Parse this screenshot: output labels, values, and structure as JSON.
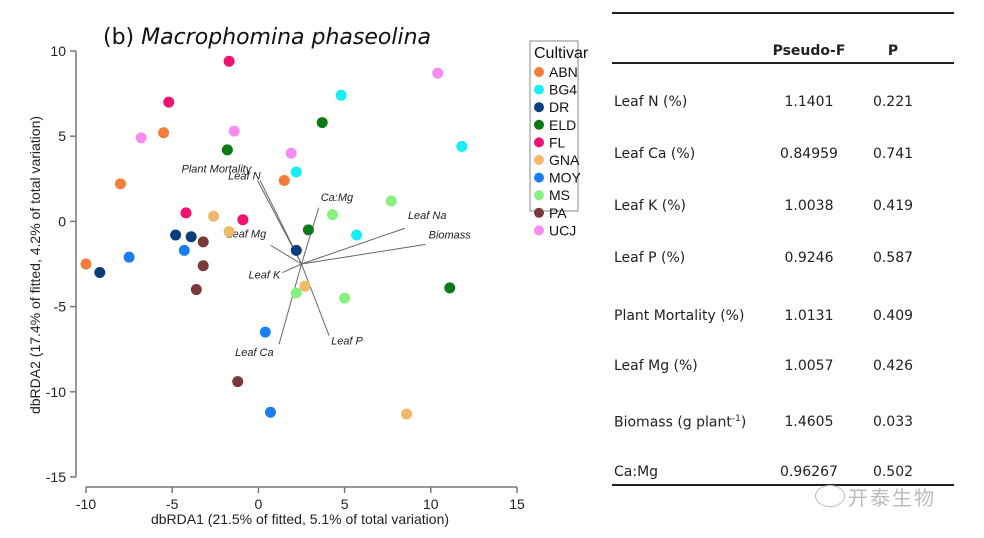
{
  "chart_data": {
    "type": "scatter",
    "title_prefix": "(b) ",
    "title_species": "Macrophomina phaseolina",
    "xlabel": "dbRDA1 (21.5% of fitted, 5.1% of total variation)",
    "ylabel": "dbRDA2 (17.4% of fitted, 4.2% of total variation)",
    "xlim": [
      -10,
      15
    ],
    "ylim": [
      -15,
      10
    ],
    "xticks": [
      -10,
      -5,
      0,
      5,
      10,
      15
    ],
    "yticks": [
      10,
      5,
      0,
      -5,
      -10,
      -15
    ],
    "grid": false,
    "legend": {
      "title": "Cultivar",
      "placement": "right",
      "entries": [
        {
          "name": "ABN",
          "color": "#f47c3c"
        },
        {
          "name": "BG4",
          "color": "#16f0f4"
        },
        {
          "name": "DR",
          "color": "#0b3d7a"
        },
        {
          "name": "ELD",
          "color": "#0a7a14"
        },
        {
          "name": "FL",
          "color": "#f0126f"
        },
        {
          "name": "GNA",
          "color": "#f2b86a"
        },
        {
          "name": "MOY",
          "color": "#1a7ef2"
        },
        {
          "name": "MS",
          "color": "#86f080"
        },
        {
          "name": "PA",
          "color": "#7a3a3a"
        },
        {
          "name": "UCJ",
          "color": "#f88cf2"
        }
      ]
    },
    "points": [
      {
        "group": "FL",
        "x": -1.7,
        "y": 9.4
      },
      {
        "group": "FL",
        "x": -5.2,
        "y": 7.0
      },
      {
        "group": "UCJ",
        "x": -6.8,
        "y": 4.9
      },
      {
        "group": "ABN",
        "x": -5.5,
        "y": 5.2
      },
      {
        "group": "UCJ",
        "x": -1.4,
        "y": 5.3
      },
      {
        "group": "ELD",
        "x": -1.8,
        "y": 4.2
      },
      {
        "group": "ABN",
        "x": -8.0,
        "y": 2.2
      },
      {
        "group": "UCJ",
        "x": 10.4,
        "y": 8.7
      },
      {
        "group": "BG4",
        "x": 4.8,
        "y": 7.4
      },
      {
        "group": "ELD",
        "x": 3.7,
        "y": 5.8
      },
      {
        "group": "UCJ",
        "x": 1.9,
        "y": 4.0
      },
      {
        "group": "BG4",
        "x": 2.2,
        "y": 2.9
      },
      {
        "group": "ABN",
        "x": 1.5,
        "y": 2.4
      },
      {
        "group": "BG4",
        "x": 11.8,
        "y": 4.4
      },
      {
        "group": "FL",
        "x": -4.2,
        "y": 0.5
      },
      {
        "group": "GNA",
        "x": -2.6,
        "y": 0.3
      },
      {
        "group": "FL",
        "x": -0.9,
        "y": 0.1
      },
      {
        "group": "GNA",
        "x": -1.7,
        "y": -0.6
      },
      {
        "group": "DR",
        "x": -4.8,
        "y": -0.8
      },
      {
        "group": "DR",
        "x": -3.9,
        "y": -0.9
      },
      {
        "group": "PA",
        "x": -3.2,
        "y": -1.2
      },
      {
        "group": "MOY",
        "x": -4.3,
        "y": -1.7
      },
      {
        "group": "ABN",
        "x": -10.0,
        "y": -2.5
      },
      {
        "group": "MOY",
        "x": -7.5,
        "y": -2.1
      },
      {
        "group": "DR",
        "x": -9.2,
        "y": -3.0
      },
      {
        "group": "PA",
        "x": -3.2,
        "y": -2.6
      },
      {
        "group": "PA",
        "x": -3.6,
        "y": -4.0
      },
      {
        "group": "MS",
        "x": 7.7,
        "y": 1.2
      },
      {
        "group": "MS",
        "x": 4.3,
        "y": 0.4
      },
      {
        "group": "ELD",
        "x": 2.9,
        "y": -0.5
      },
      {
        "group": "BG4",
        "x": 5.7,
        "y": -0.8
      },
      {
        "group": "DR",
        "x": 2.2,
        "y": -1.7
      },
      {
        "group": "GNA",
        "x": 2.7,
        "y": -3.8
      },
      {
        "group": "MS",
        "x": 2.2,
        "y": -4.2
      },
      {
        "group": "MS",
        "x": 5.0,
        "y": -4.5
      },
      {
        "group": "ELD",
        "x": 11.1,
        "y": -3.9
      },
      {
        "group": "MOY",
        "x": 0.4,
        "y": -6.5
      },
      {
        "group": "PA",
        "x": -1.2,
        "y": -9.4
      },
      {
        "group": "MOY",
        "x": 0.7,
        "y": -11.2
      },
      {
        "group": "GNA",
        "x": 8.6,
        "y": -11.3
      }
    ],
    "vectors": {
      "origin": {
        "x": 2.5,
        "y": -2.5
      },
      "items": [
        {
          "name": "Plant Mortality",
          "x": -0.05,
          "y": 2.4
        },
        {
          "name": "Leaf N",
          "x": 0.1,
          "y": 2.4
        },
        {
          "name": "Ca:Mg",
          "x": 3.5,
          "y": 0.8
        },
        {
          "name": "Leaf Na",
          "x": 8.5,
          "y": -0.4
        },
        {
          "name": "Biomass",
          "x": 9.7,
          "y": -1.35
        },
        {
          "name": "Leaf Mg",
          "x": 0.7,
          "y": -1.4
        },
        {
          "name": "Leaf K",
          "x": 1.4,
          "y": -3.0
        },
        {
          "name": "Leaf Ca",
          "x": 1.2,
          "y": -7.2
        },
        {
          "name": "Leaf P",
          "x": 4.1,
          "y": -6.7
        }
      ]
    }
  },
  "table": {
    "headers": {
      "name": "",
      "pseudo_f": "Pseudo-F",
      "p": "P"
    },
    "rows": [
      {
        "name": "Leaf N (%)",
        "pseudo_f": "1.1401",
        "p": "0.221"
      },
      {
        "name": "Leaf Ca (%)",
        "pseudo_f": "0.84959",
        "p": "0.741"
      },
      {
        "name": "Leaf K (%)",
        "pseudo_f": "1.0038",
        "p": "0.419"
      },
      {
        "name": "Leaf P (%)",
        "pseudo_f": "0.9246",
        "p": "0.587"
      },
      {
        "name": "Plant Mortality (%)",
        "pseudo_f": "1.0131",
        "p": "0.409"
      },
      {
        "name": "Leaf Mg (%)",
        "pseudo_f": "1.0057",
        "p": "0.426"
      },
      {
        "name": "Biomass (g plant",
        "name_sup": "-1",
        "name_suffix": ")",
        "pseudo_f": "1.4605",
        "p": "0.033"
      },
      {
        "name": "Ca:Mg",
        "pseudo_f": "0.96267",
        "p": "0.502"
      }
    ]
  },
  "watermark": {
    "text": "开泰生物",
    "icon": "wechat-icon"
  }
}
